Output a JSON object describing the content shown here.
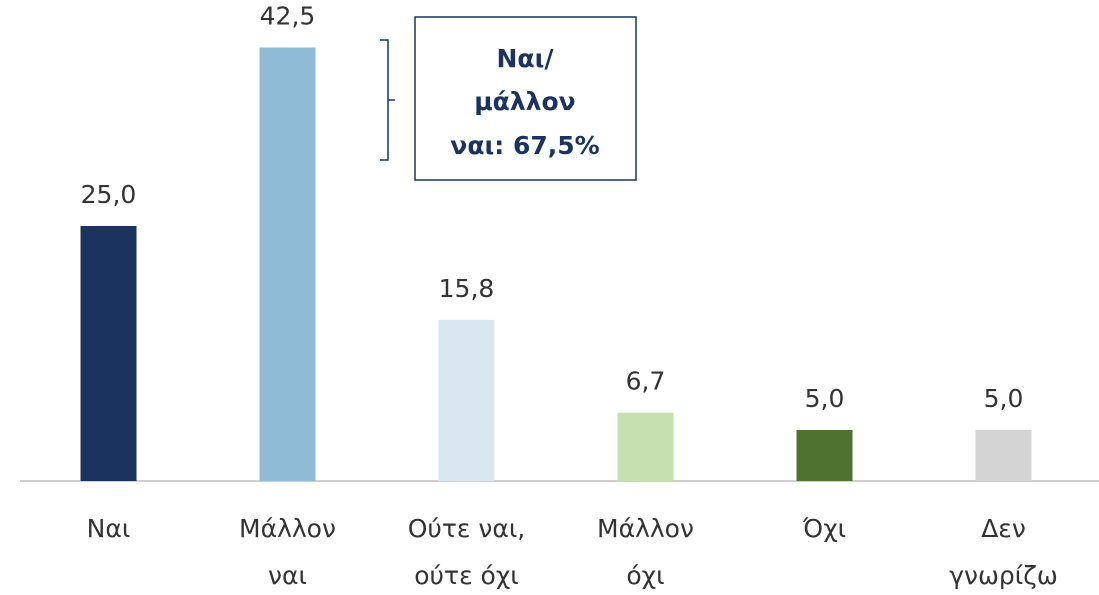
{
  "chart_data": {
    "type": "bar",
    "categories": [
      [
        "Ναι"
      ],
      [
        "Μάλλον",
        "ναι"
      ],
      [
        "Ούτε ναι,",
        "ούτε όχι"
      ],
      [
        "Μάλλον",
        "όχι"
      ],
      [
        "Όχι"
      ],
      [
        "Δεν",
        "γνωρίζω"
      ]
    ],
    "values": [
      25.0,
      42.5,
      15.8,
      6.7,
      5.0,
      5.0
    ],
    "value_labels": [
      "25,0",
      "42,5",
      "15,8",
      "6,7",
      "5,0",
      "5,0"
    ],
    "colors": [
      "#1b335f",
      "#8fbbd6",
      "#d9e7f1",
      "#c6dfae",
      "#4e7230",
      "#d4d4d4"
    ],
    "ylim": [
      0,
      45
    ],
    "annotation": [
      "Ναι/",
      "μάλλον",
      "ναι: 67,5%"
    ]
  }
}
